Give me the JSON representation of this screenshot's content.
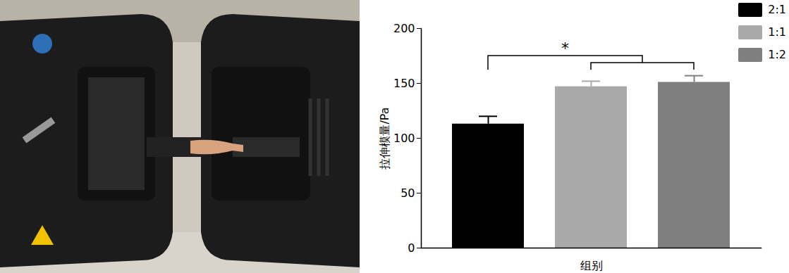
{
  "chart_data": {
    "type": "bar",
    "categories": [
      "2:1",
      "1:1",
      "1:2"
    ],
    "values": [
      113,
      147,
      151
    ],
    "errors": [
      7,
      5,
      6
    ],
    "colors": [
      "#000000",
      "#a9a9a9",
      "#7f7f7f"
    ],
    "xlabel": "组别",
    "ylabel": "拉伸模量/Pa",
    "ylim": [
      0,
      200
    ],
    "yticks": [
      0,
      50,
      100,
      150,
      200
    ],
    "legend": "top-right",
    "tick_labels": "y",
    "annotations": [
      {
        "text": "*",
        "from": "2:1",
        "to": [
          "1:1",
          "1:2"
        ]
      }
    ]
  }
}
